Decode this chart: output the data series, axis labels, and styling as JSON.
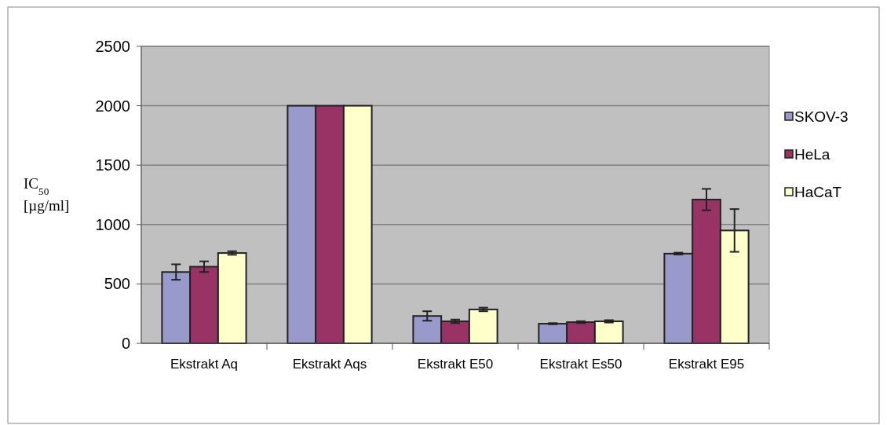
{
  "chart_data": {
    "type": "bar",
    "ylabel": "IC$_{50}$ [µg/ml]",
    "categories": [
      "Ekstrakt Aq",
      "Ekstrakt Aqs",
      "Ekstrakt E50",
      "Ekstrakt Es50",
      "Ekstrakt E95"
    ],
    "series": [
      {
        "name": "SKOV-3",
        "color": "#9999cc",
        "values": [
          600,
          2000,
          230,
          165,
          755
        ],
        "errors": [
          65,
          null,
          40,
          5,
          8
        ]
      },
      {
        "name": "HeLa",
        "color": "#993366",
        "values": [
          645,
          2000,
          185,
          178,
          1210
        ],
        "errors": [
          45,
          null,
          15,
          8,
          90
        ]
      },
      {
        "name": "HaCaT",
        "color": "#ffffcc",
        "values": [
          760,
          2000,
          285,
          185,
          950
        ],
        "errors": [
          15,
          null,
          15,
          10,
          180
        ]
      }
    ],
    "ylim": [
      0,
      2500
    ],
    "yticks": [
      0,
      500,
      1000,
      1500,
      2000,
      2500
    ],
    "grid": "y",
    "legend": "right"
  }
}
